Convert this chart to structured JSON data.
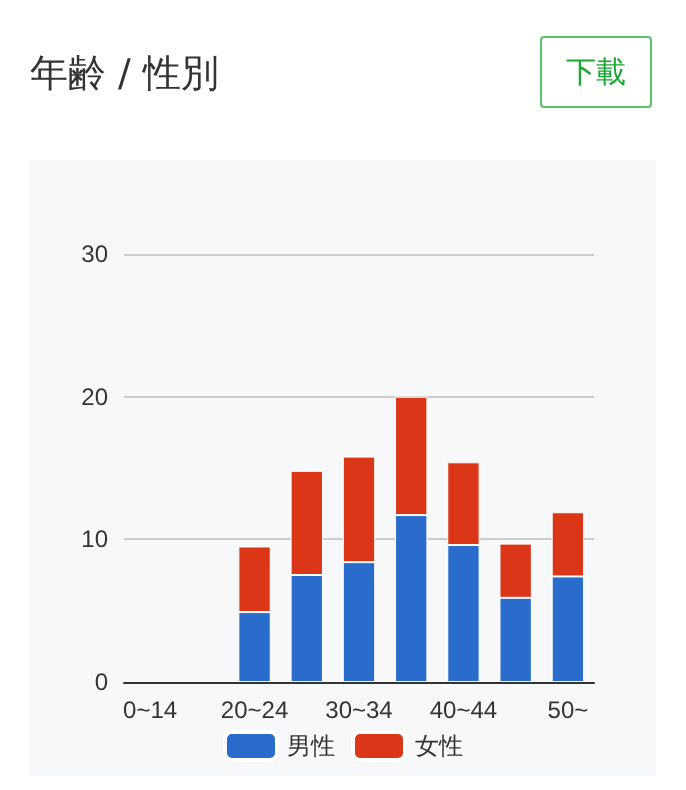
{
  "chart_data": {
    "type": "bar",
    "title": "年齢 / 性別",
    "annotations": [
      "下載"
    ],
    "categories": [
      "0~14",
      null,
      "20~24",
      null,
      "30~34",
      null,
      "40~44",
      null,
      "50~"
    ],
    "series": [
      {
        "name": "男性",
        "color": "#2a6ccb",
        "values": [
          0,
          0,
          4.9,
          7.5,
          8.4,
          11.7,
          9.6,
          5.9,
          7.4
        ]
      },
      {
        "name": "女性",
        "color": "#dc3618",
        "values": [
          0,
          0,
          4.6,
          7.3,
          7.4,
          8.3,
          5.8,
          3.8,
          4.5
        ]
      }
    ],
    "stacked": true,
    "ylim": [
      0,
      30
    ],
    "yticks": [
      0,
      10,
      20,
      30
    ],
    "grid": "y",
    "legend": "bottom"
  }
}
